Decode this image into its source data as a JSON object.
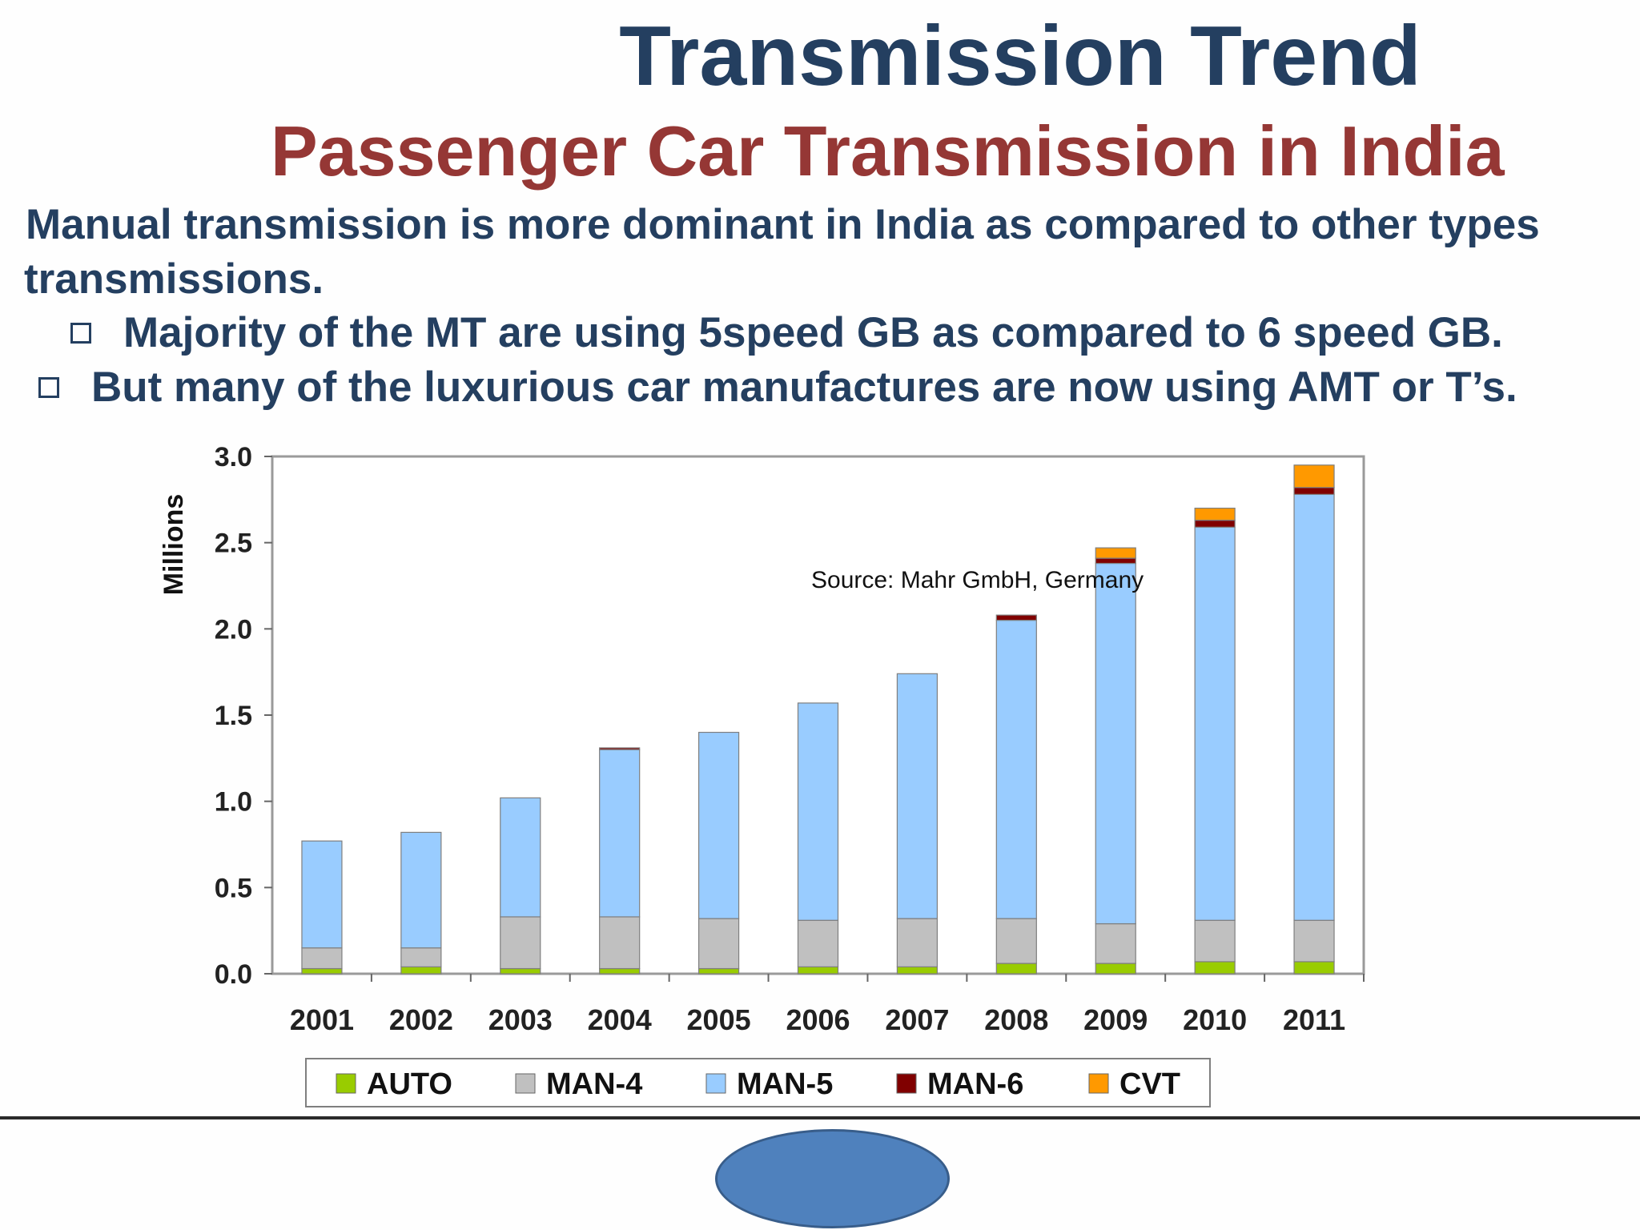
{
  "slide": {
    "title": "Transmission Trend",
    "subtitle": "Passenger Car Transmission in India",
    "intro_line1": "Manual transmission is more dominant in India as compared to other types",
    "intro_line2": "transmissions.",
    "bullets": [
      "Majority of the MT are using 5speed GB as compared to 6 speed GB.",
      "But many of the luxurious car manufactures are now using AMT or  T’s."
    ],
    "source": "Source: Mahr GmbH, Germany"
  },
  "colors": {
    "title": "#243f60",
    "subtitle": "#953735",
    "AUTO": "#99cc00",
    "MAN-4": "#c0c0c0",
    "MAN-5": "#99ccff",
    "MAN-6": "#800000",
    "CVT": "#ff9900"
  },
  "chart_data": {
    "type": "bar",
    "stacked": true,
    "ylabel": "Millions",
    "ylim": [
      0,
      3.0
    ],
    "yticks": [
      "0.0",
      "0.5",
      "1.0",
      "1.5",
      "2.0",
      "2.5",
      "3.0"
    ],
    "categories": [
      "2001",
      "2002",
      "2003",
      "2004",
      "2005",
      "2006",
      "2007",
      "2008",
      "2009",
      "2010",
      "2011"
    ],
    "legend_position": "bottom",
    "series": [
      {
        "name": "AUTO",
        "values": [
          0.03,
          0.04,
          0.03,
          0.03,
          0.03,
          0.04,
          0.04,
          0.06,
          0.06,
          0.07,
          0.07
        ]
      },
      {
        "name": "MAN-4",
        "values": [
          0.12,
          0.11,
          0.3,
          0.3,
          0.29,
          0.27,
          0.28,
          0.26,
          0.23,
          0.24,
          0.24
        ]
      },
      {
        "name": "MAN-5",
        "values": [
          0.62,
          0.67,
          0.69,
          0.97,
          1.08,
          1.26,
          1.42,
          1.73,
          2.09,
          2.28,
          2.47
        ]
      },
      {
        "name": "MAN-6",
        "values": [
          0.0,
          0.0,
          0.0,
          0.01,
          0.0,
          0.0,
          0.0,
          0.03,
          0.03,
          0.04,
          0.04
        ]
      },
      {
        "name": "CVT",
        "values": [
          0.0,
          0.0,
          0.0,
          0.0,
          0.0,
          0.0,
          0.0,
          0.0,
          0.06,
          0.07,
          0.13
        ]
      }
    ]
  }
}
